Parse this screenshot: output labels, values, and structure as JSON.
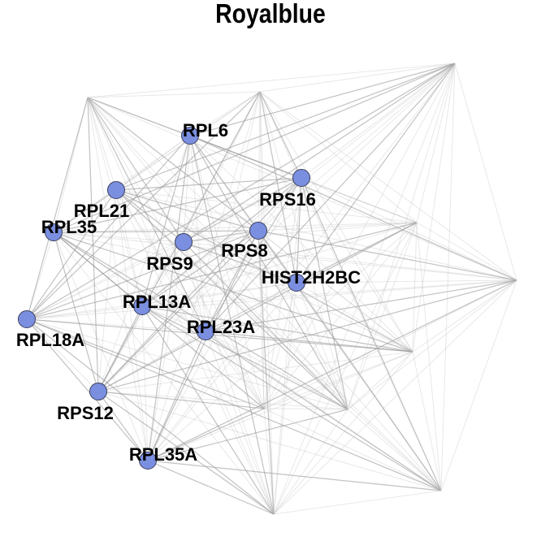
{
  "title": "Royalblue",
  "accent_color": "#7b8fe0",
  "nodes": [
    {
      "id": "RPL6",
      "label": "RPL6"
    },
    {
      "id": "RPL21",
      "label": "RPL21"
    },
    {
      "id": "RPS16",
      "label": "RPS16"
    },
    {
      "id": "RPL35",
      "label": "RPL35"
    },
    {
      "id": "RPS8",
      "label": "RPS8"
    },
    {
      "id": "RPS9",
      "label": "RPS9"
    },
    {
      "id": "HIST2H2BC",
      "label": "HIST2H2BC"
    },
    {
      "id": "RPL13A",
      "label": "RPL13A"
    },
    {
      "id": "RPL23A",
      "label": "RPL23A"
    },
    {
      "id": "RPL18A",
      "label": "RPL18A"
    },
    {
      "id": "RPS12",
      "label": "RPS12"
    },
    {
      "id": "RPL35A",
      "label": "RPL35A"
    }
  ]
}
